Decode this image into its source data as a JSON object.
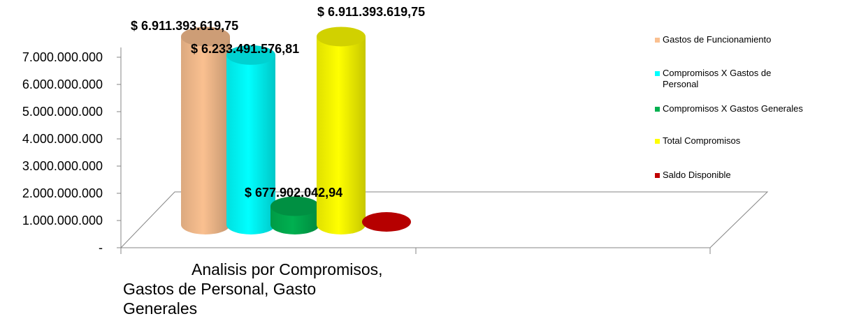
{
  "chart_data": {
    "type": "bar",
    "xlabel_lines": [
      "Analisis por Compromisos,",
      "Gastos de Personal, Gasto",
      "Generales"
    ],
    "ylim": [
      0,
      7000000000
    ],
    "y_tick_labels": [
      "-",
      "1.000.000.000",
      "2.000.000.000",
      "3.000.000.000",
      "4.000.000.000",
      "5.000.000.000",
      "6.000.000.000",
      "7.000.000.000"
    ],
    "legend_position": "right",
    "series": [
      {
        "name": "Gastos de Funcionamiento",
        "value": 6911393619.75,
        "label": "$ 6.911.393.619,75",
        "color": "#FAC090"
      },
      {
        "name": "Compromisos X Gastos de Personal",
        "value": 6233491576.81,
        "label": "$ 6.233.491.576,81",
        "color": "#00FFFF"
      },
      {
        "name": "Compromisos X Gastos Generales",
        "value": 677902042.94,
        "label": "$ 677.902.042,94",
        "color": "#00B050"
      },
      {
        "name": "Total Compromisos",
        "value": 6911393619.75,
        "label": "$ 6.911.393.619,75",
        "color": "#FFFF00"
      },
      {
        "name": "Saldo Disponible",
        "value": 0,
        "label": "",
        "color": "#C00000"
      }
    ]
  }
}
